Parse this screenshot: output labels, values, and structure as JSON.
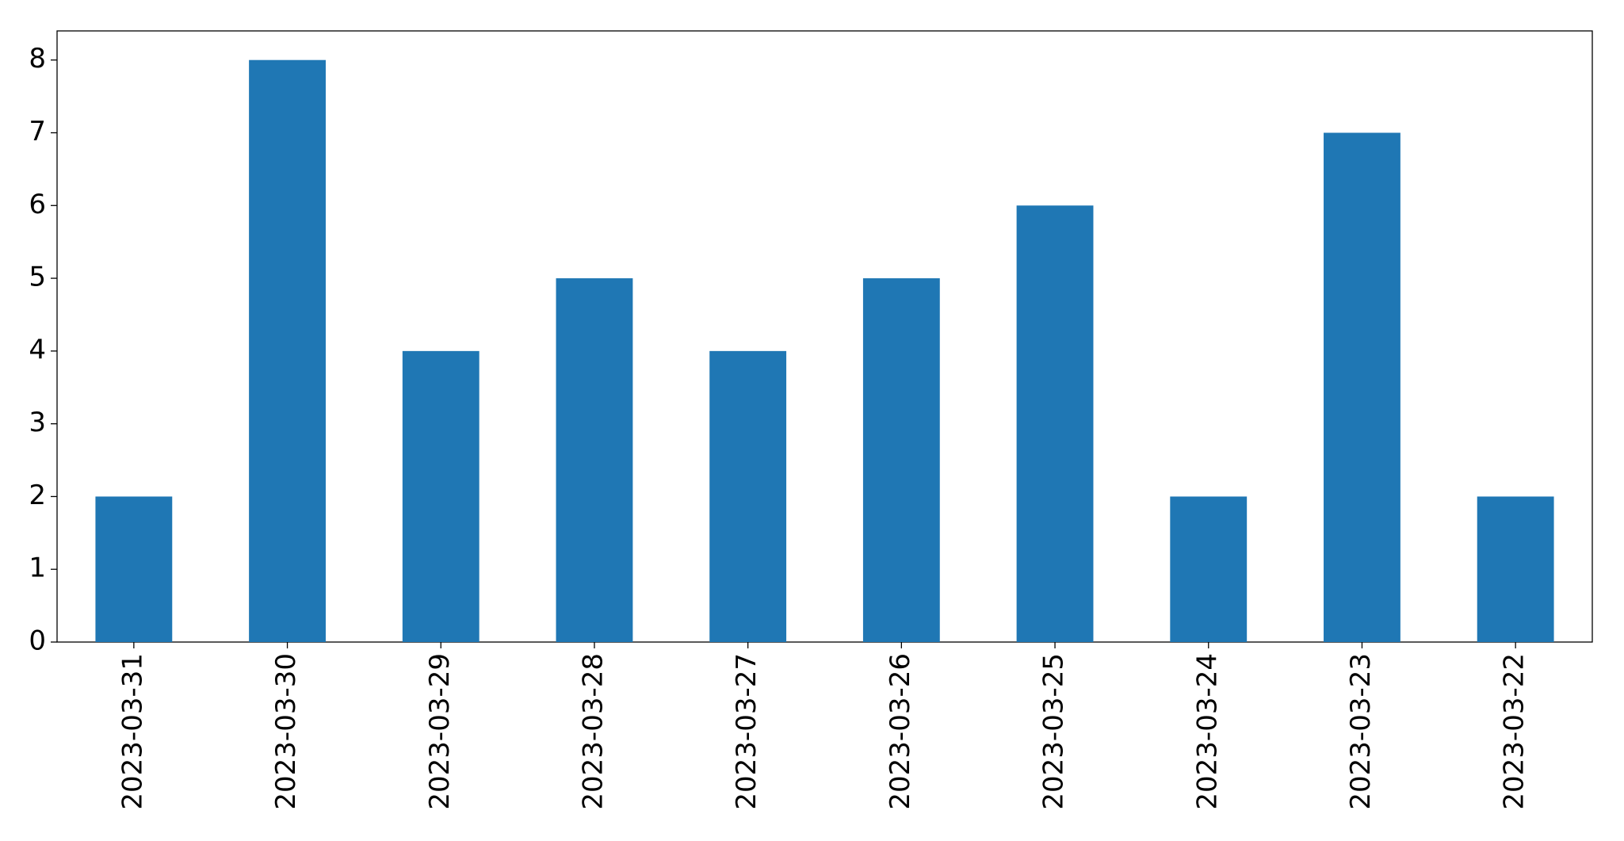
{
  "chart_data": {
    "type": "bar",
    "categories": [
      "2023-03-31",
      "2023-03-30",
      "2023-03-29",
      "2023-03-28",
      "2023-03-27",
      "2023-03-26",
      "2023-03-25",
      "2023-03-24",
      "2023-03-23",
      "2023-03-22"
    ],
    "values": [
      2,
      8,
      4,
      5,
      4,
      5,
      6,
      2,
      7,
      2
    ],
    "color": "#1f77b4",
    "ylim": [
      0,
      8.4
    ],
    "yticks": [
      0,
      1,
      2,
      3,
      4,
      5,
      6,
      7,
      8
    ],
    "grid": false
  }
}
